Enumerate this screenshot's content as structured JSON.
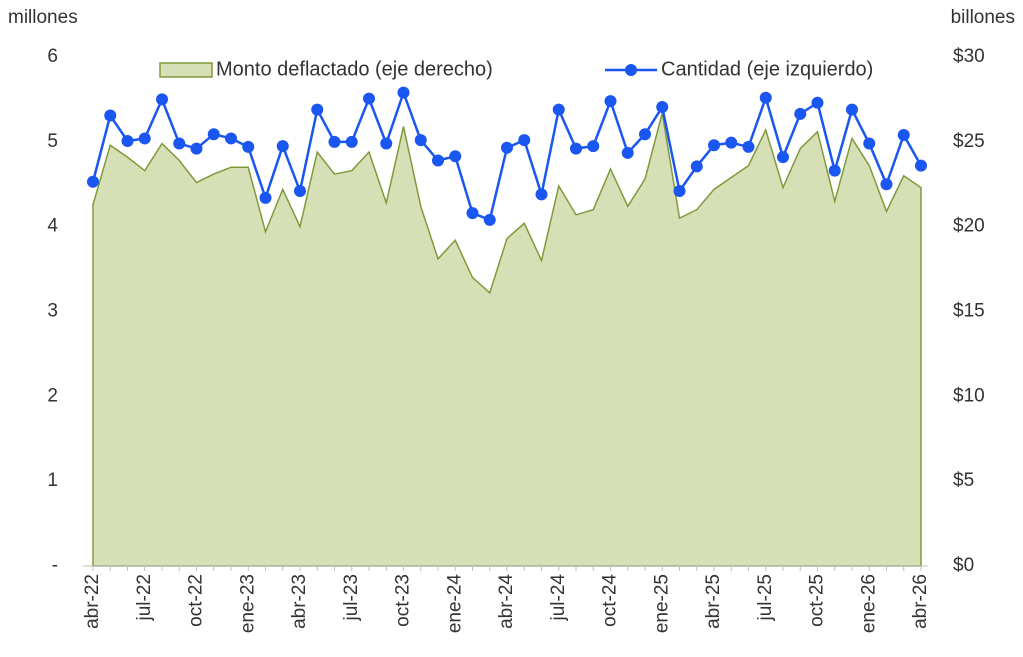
{
  "chart_data": {
    "type": "area-line",
    "y_label": "millones",
    "y2_label": "billones",
    "categories": [
      "abr-22",
      null,
      null,
      "jul-22",
      null,
      null,
      "oct-22",
      null,
      null,
      "ene-23",
      null,
      null,
      "abr-23",
      null,
      null,
      "jul-23",
      null,
      null,
      "oct-23",
      null,
      null,
      "ene-24",
      null,
      null,
      "abr-24",
      null,
      null,
      "jul-24",
      null,
      null,
      "oct-24",
      null,
      null,
      "ene-25",
      null,
      null,
      "abr-25",
      null,
      null,
      "jul-25",
      null,
      null,
      "oct-25",
      null,
      null,
      "ene-26",
      null,
      null,
      "abr-26"
    ],
    "series": [
      {
        "name": "Monto deflactado (eje derecho)",
        "type": "area",
        "axis": "y2",
        "color": "#d6dfb6",
        "edge_color": "#7f9a3a",
        "values": [
          21.3,
          24.8,
          24.1,
          23.3,
          24.9,
          23.9,
          22.6,
          23.1,
          23.5,
          23.5,
          19.7,
          22.2,
          20.0,
          24.4,
          23.1,
          23.3,
          24.4,
          21.4,
          25.9,
          21.2,
          18.1,
          19.2,
          17.0,
          16.1,
          19.3,
          20.2,
          18.0,
          22.4,
          20.7,
          21.0,
          23.4,
          21.2,
          22.8,
          26.7,
          20.5,
          21.0,
          22.2,
          22.9,
          23.6,
          25.7,
          22.3,
          24.6,
          25.6,
          21.5,
          25.2,
          23.6,
          20.9,
          23.0,
          22.3
        ]
      },
      {
        "name": "Cantidad (eje izquierdo)",
        "type": "line",
        "axis": "y",
        "color": "#1a56f0",
        "values": [
          4.53,
          5.31,
          5.01,
          5.04,
          5.5,
          4.98,
          4.92,
          5.09,
          5.04,
          4.94,
          4.34,
          4.95,
          4.42,
          5.38,
          5.0,
          5.0,
          5.51,
          4.98,
          5.58,
          5.02,
          4.78,
          4.83,
          4.16,
          4.08,
          4.93,
          5.02,
          4.38,
          5.38,
          4.92,
          4.95,
          5.48,
          4.87,
          5.09,
          5.41,
          4.42,
          4.71,
          4.96,
          4.99,
          4.94,
          5.52,
          4.82,
          5.33,
          5.46,
          4.66,
          5.38,
          4.98,
          4.5,
          5.08,
          4.72
        ]
      }
    ],
    "ylim": [
      0,
      6
    ],
    "yticks": [
      {
        "value": 0,
        "label": "-"
      },
      1,
      2,
      3,
      4,
      5,
      6
    ],
    "y2lim": [
      0,
      30
    ],
    "y2ticks": [
      {
        "value": 0,
        "label": "$0"
      },
      {
        "value": 5,
        "label": "$5"
      },
      {
        "value": 10,
        "label": "$10"
      },
      {
        "value": 15,
        "label": "$15"
      },
      {
        "value": 20,
        "label": "$20"
      },
      {
        "value": 25,
        "label": "$25"
      },
      {
        "value": 30,
        "label": "$30"
      }
    ],
    "legend": "top",
    "grid": false
  }
}
